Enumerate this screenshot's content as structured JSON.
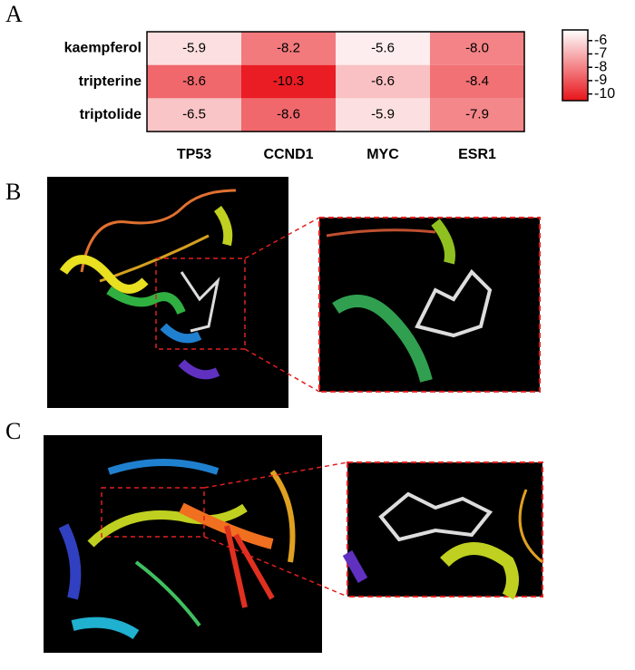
{
  "panel_labels": {
    "a": "A",
    "b": "B",
    "c": "C"
  },
  "chart_data": {
    "type": "heatmap",
    "rows": [
      "kaempferol",
      "tripterine",
      "triptolide"
    ],
    "columns": [
      "TP53",
      "CCND1",
      "MYC",
      "ESR1"
    ],
    "values": [
      [
        -5.9,
        -8.2,
        -5.6,
        -8.0
      ],
      [
        -8.6,
        -10.3,
        -6.6,
        -8.4
      ],
      [
        -6.5,
        -8.6,
        -5.9,
        -7.9
      ]
    ],
    "value_labels": [
      [
        "-5.9",
        "-8.2",
        "-5.6",
        "-8.0"
      ],
      [
        "-8.6",
        "-10.3",
        "-6.6",
        "-8.4"
      ],
      [
        "-6.5",
        "-8.6",
        "-5.9",
        "-7.9"
      ]
    ],
    "zlim": [
      -10.5,
      -5.2
    ],
    "colorbar_ticks": [
      -6,
      -7,
      -8,
      -9,
      -10
    ],
    "color_low": "#e8141a",
    "color_high": "#ffffff"
  }
}
